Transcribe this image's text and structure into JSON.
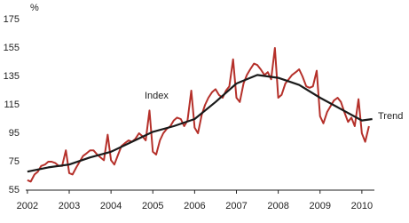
{
  "chart_data": {
    "type": "line",
    "y_label": "%",
    "annotations": [
      "Index",
      "Trend"
    ],
    "xlim": [
      2001.96,
      2010.3
    ],
    "xticks": [
      2002,
      2003,
      2004,
      2005,
      2006,
      2007,
      2008,
      2009,
      2010
    ],
    "ylim": [
      55,
      175
    ],
    "yticks": [
      55,
      75,
      95,
      115,
      135,
      155,
      175
    ],
    "grid": false,
    "series": [
      {
        "name": "Index",
        "color": "#b5302a",
        "x": [
          2002.0,
          2002.08,
          2002.17,
          2002.25,
          2002.33,
          2002.42,
          2002.5,
          2002.58,
          2002.67,
          2002.75,
          2002.83,
          2002.92,
          2003.0,
          2003.08,
          2003.17,
          2003.25,
          2003.33,
          2003.42,
          2003.5,
          2003.58,
          2003.67,
          2003.75,
          2003.83,
          2003.92,
          2004.0,
          2004.08,
          2004.17,
          2004.25,
          2004.33,
          2004.42,
          2004.5,
          2004.58,
          2004.67,
          2004.75,
          2004.83,
          2004.92,
          2005.0,
          2005.08,
          2005.17,
          2005.25,
          2005.33,
          2005.42,
          2005.5,
          2005.58,
          2005.67,
          2005.75,
          2005.83,
          2005.92,
          2006.0,
          2006.08,
          2006.17,
          2006.25,
          2006.33,
          2006.42,
          2006.5,
          2006.58,
          2006.67,
          2006.75,
          2006.83,
          2006.92,
          2007.0,
          2007.08,
          2007.17,
          2007.25,
          2007.33,
          2007.42,
          2007.5,
          2007.58,
          2007.67,
          2007.75,
          2007.83,
          2007.92,
          2008.0,
          2008.08,
          2008.17,
          2008.25,
          2008.33,
          2008.42,
          2008.5,
          2008.58,
          2008.67,
          2008.75,
          2008.83,
          2008.92,
          2009.0,
          2009.08,
          2009.17,
          2009.25,
          2009.33,
          2009.42,
          2009.5,
          2009.58,
          2009.67,
          2009.75,
          2009.83,
          2009.92,
          2010.0,
          2010.08,
          2010.17
        ],
        "values": [
          62,
          61,
          66,
          68,
          72,
          73,
          75,
          75,
          74,
          72,
          72,
          83,
          67,
          66,
          71,
          75,
          79,
          81,
          83,
          83,
          80,
          78,
          76,
          94,
          76,
          73,
          80,
          86,
          88,
          90,
          89,
          91,
          95,
          93,
          90,
          111,
          82,
          80,
          90,
          95,
          98,
          100,
          104,
          106,
          105,
          100,
          104,
          125,
          99,
          95,
          108,
          115,
          120,
          124,
          126,
          122,
          120,
          125,
          128,
          147,
          120,
          117,
          130,
          136,
          140,
          144,
          143,
          140,
          136,
          138,
          133,
          155,
          120,
          122,
          130,
          133,
          136,
          138,
          140,
          135,
          128,
          127,
          128,
          139,
          107,
          102,
          110,
          114,
          118,
          120,
          117,
          110,
          103,
          106,
          100,
          119,
          95,
          89,
          100
        ]
      },
      {
        "name": "Trend",
        "color": "#1a1a1a",
        "x": [
          2002.0,
          2002.5,
          2003.0,
          2003.5,
          2004.0,
          2004.5,
          2005.0,
          2005.5,
          2006.0,
          2006.5,
          2007.0,
          2007.5,
          2008.0,
          2008.5,
          2009.0,
          2009.5,
          2010.0,
          2010.25
        ],
        "values": [
          68,
          71,
          73,
          78,
          82,
          89,
          96,
          100,
          105,
          117,
          130,
          136,
          134,
          129,
          120,
          112,
          104,
          105
        ]
      }
    ]
  }
}
